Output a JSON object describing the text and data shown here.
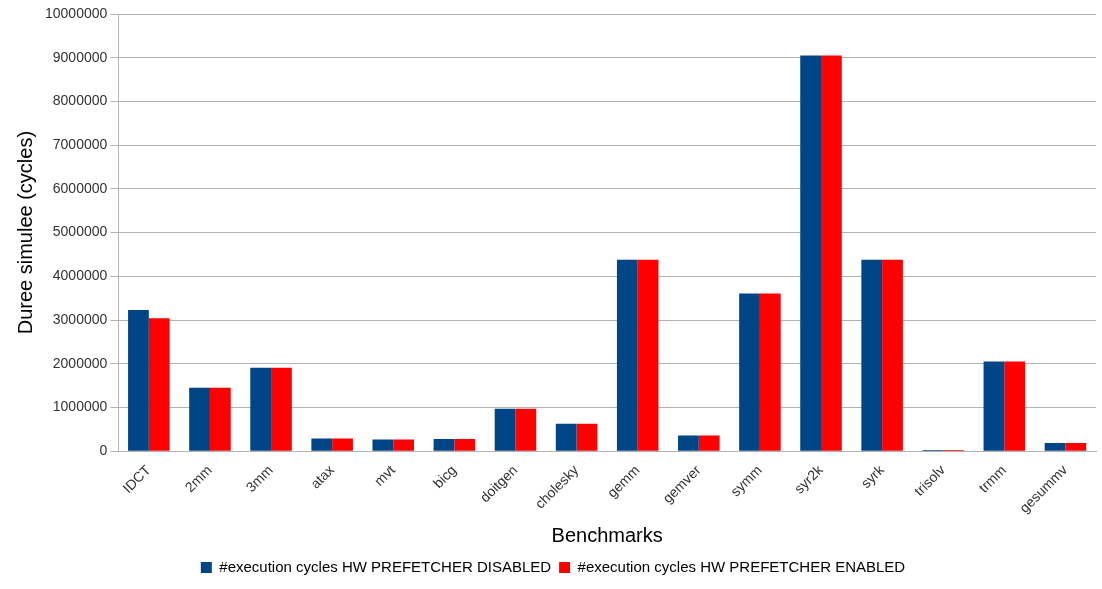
{
  "chart_data": {
    "type": "bar",
    "xlabel": "Benchmarks",
    "ylabel": "Duree simulee (cycles)",
    "categories": [
      "IDCT",
      "2mm",
      "3mm",
      "atax",
      "mvt",
      "bicg",
      "doitgen",
      "cholesky",
      "gemm",
      "gemver",
      "symm",
      "syr2k",
      "syrk",
      "trisolv",
      "trmm",
      "gesummv"
    ],
    "series": [
      {
        "name": "#execution cycles HW PREFETCHER DISABLED",
        "color": "#004586",
        "values": [
          3230000,
          1450000,
          1910000,
          290000,
          270000,
          280000,
          970000,
          630000,
          4380000,
          360000,
          3610000,
          9050000,
          4380000,
          30000,
          2050000,
          190000
        ]
      },
      {
        "name": "#execution cycles HW PREFETCHER ENABLED",
        "color": "#ff0000",
        "values": [
          3040000,
          1450000,
          1910000,
          290000,
          270000,
          280000,
          970000,
          630000,
          4380000,
          360000,
          3610000,
          9050000,
          4380000,
          30000,
          2050000,
          190000
        ]
      }
    ],
    "ylim": [
      0,
      10000000
    ],
    "yticks": [
      0,
      1000000,
      2000000,
      3000000,
      4000000,
      5000000,
      6000000,
      7000000,
      8000000,
      9000000,
      10000000
    ],
    "grid": "y",
    "legend": "bottom"
  }
}
